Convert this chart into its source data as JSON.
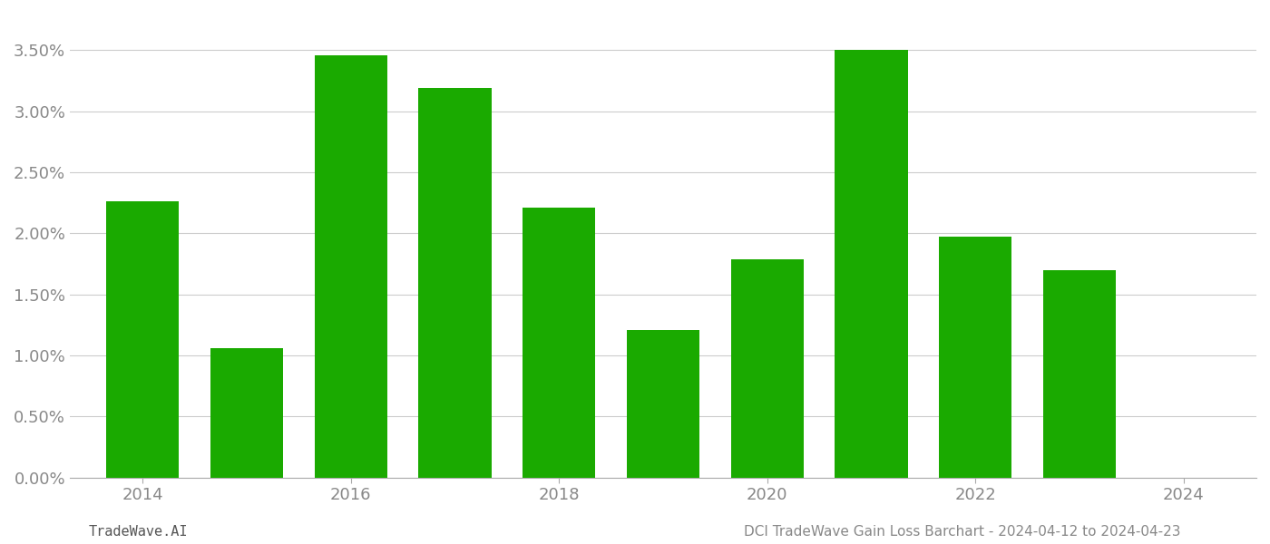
{
  "years": [
    2014,
    2015,
    2016,
    2017,
    2018,
    2019,
    2020,
    2021,
    2022,
    2023
  ],
  "values": [
    0.0226,
    0.0106,
    0.0346,
    0.0319,
    0.0221,
    0.0121,
    0.0179,
    0.035,
    0.0197,
    0.017
  ],
  "bar_color": "#1aaa00",
  "background_color": "#ffffff",
  "grid_color": "#cccccc",
  "axis_color": "#aaaaaa",
  "tick_color": "#888888",
  "ylim": [
    0,
    0.038
  ],
  "yticks": [
    0.0,
    0.005,
    0.01,
    0.015,
    0.02,
    0.025,
    0.03,
    0.035
  ],
  "xticks": [
    2014,
    2016,
    2018,
    2020,
    2022,
    2024
  ],
  "xlim": [
    2013.3,
    2024.7
  ],
  "xlabel_bottom_left": "TradeWave.AI",
  "xlabel_bottom_right": "DCI TradeWave Gain Loss Barchart - 2024-04-12 to 2024-04-23",
  "font_color_left": "#555555",
  "font_color_right": "#888888",
  "label_fontsize": 11,
  "tick_fontsize": 13,
  "bar_width": 0.7
}
